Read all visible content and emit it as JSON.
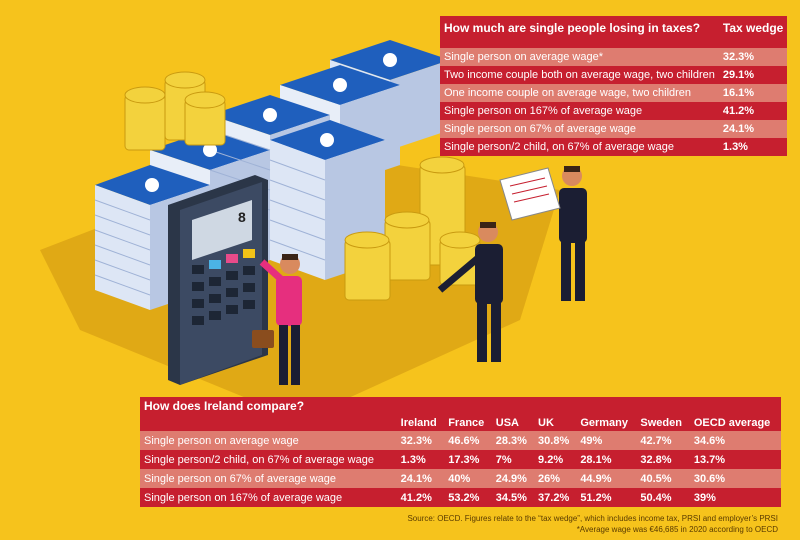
{
  "tax_wedge_table": {
    "title": "How much are single people losing in taxes?",
    "value_header": "Tax wedge",
    "rows": [
      {
        "label": "Single person on average wage*",
        "value": "32.3%"
      },
      {
        "label": "Two income couple both on average wage, two children",
        "value": "29.1%"
      },
      {
        "label": "One income couple on average wage, two children",
        "value": "16.1%"
      },
      {
        "label": "Single person on 167% of average wage",
        "value": "41.2%"
      },
      {
        "label": "Single person on 67% of average wage",
        "value": "24.1%"
      },
      {
        "label": "Single person/2 child, on 67% of average wage",
        "value": "1.3%"
      }
    ]
  },
  "compare_table": {
    "title": "How does Ireland compare?",
    "columns": [
      "Ireland",
      "France",
      "USA",
      "UK",
      "Germany",
      "Sweden",
      "OECD average"
    ],
    "rows": [
      {
        "label": "Single person on average wage",
        "values": [
          "32.3%",
          "46.6%",
          "28.3%",
          "30.8%",
          "49%",
          "42.7%",
          "34.6%"
        ]
      },
      {
        "label": "Single person/2 child, on 67% of average wage",
        "values": [
          "1.3%",
          "17.3%",
          "7%",
          "9.2%",
          "28.1%",
          "32.8%",
          "13.7%"
        ]
      },
      {
        "label": "Single person on 67% of average wage",
        "values": [
          "24.1%",
          "40%",
          "24.9%",
          "26%",
          "44.9%",
          "40.5%",
          "30.6%"
        ]
      },
      {
        "label": "Single person on 167% of average wage",
        "values": [
          "41.2%",
          "53.2%",
          "34.5%",
          "37.2%",
          "51.2%",
          "50.4%",
          "39%"
        ]
      }
    ]
  },
  "illustration": {
    "calculator_display": "8"
  },
  "source": {
    "line1": "Source: OECD. Figures relate to the “tax wedge”, which includes income tax, PRSI and employer’s PRSI",
    "line2": "*Average wage was €46,685 in 2020 according to OECD"
  },
  "colors": {
    "background": "#f6c31c",
    "dark_row": "#c61f2f",
    "light_row": "#de7c70"
  },
  "chart_data": [
    {
      "type": "table",
      "title": "How much are single people losing in taxes?",
      "columns": [
        "Tax wedge"
      ],
      "categories": [
        "Single person on average wage*",
        "Two income couple both on average wage, two children",
        "One income couple on average wage, two children",
        "Single person on 167% of average wage",
        "Single person on 67% of average wage",
        "Single person/2 child, on 67% of average wage"
      ],
      "values": [
        32.3,
        29.1,
        16.1,
        41.2,
        24.1,
        1.3
      ]
    },
    {
      "type": "table",
      "title": "How does Ireland compare?",
      "categories": [
        "Ireland",
        "France",
        "USA",
        "UK",
        "Germany",
        "Sweden",
        "OECD average"
      ],
      "series": [
        {
          "name": "Single person on average wage",
          "values": [
            32.3,
            46.6,
            28.3,
            30.8,
            49,
            42.7,
            34.6
          ]
        },
        {
          "name": "Single person/2 child, on 67% of average wage",
          "values": [
            1.3,
            17.3,
            7,
            9.2,
            28.1,
            32.8,
            13.7
          ]
        },
        {
          "name": "Single person on 67% of average wage",
          "values": [
            24.1,
            40,
            24.9,
            26,
            44.9,
            40.5,
            30.6
          ]
        },
        {
          "name": "Single person on 167% of average wage",
          "values": [
            41.2,
            53.2,
            34.5,
            37.2,
            51.2,
            50.4,
            39
          ]
        }
      ]
    }
  ]
}
